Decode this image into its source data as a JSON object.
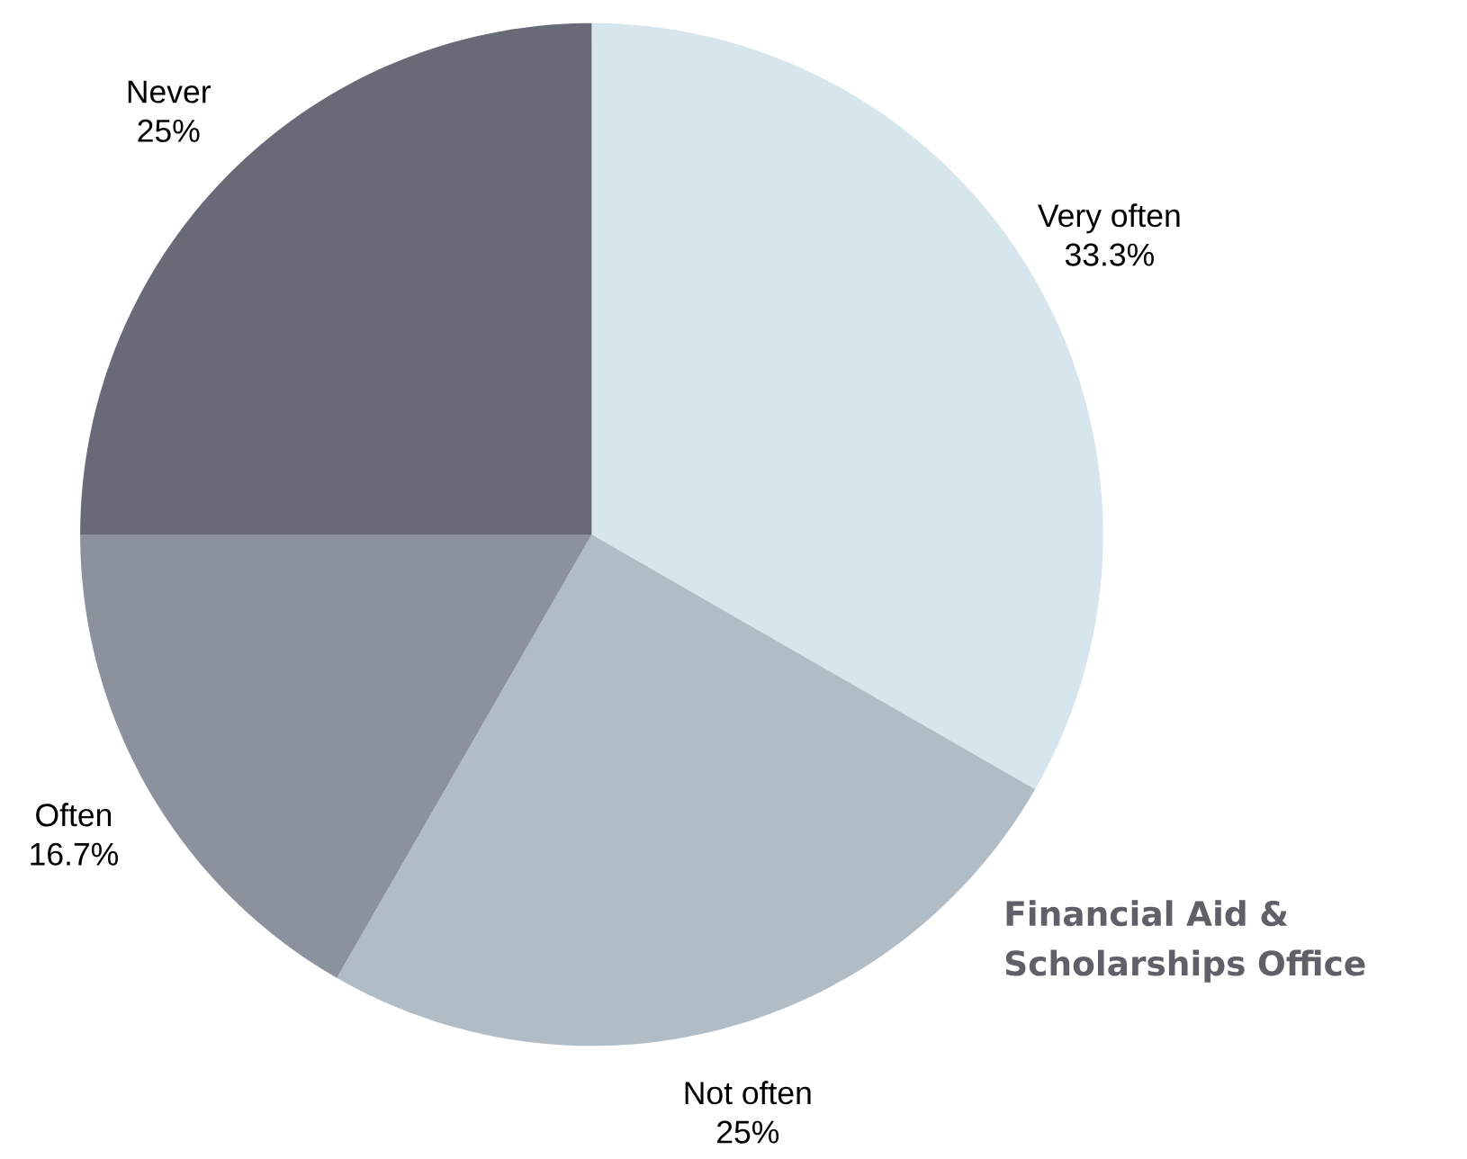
{
  "chart_data": {
    "type": "pie",
    "categories": [
      "Very often",
      "Not often",
      "Often",
      "Never"
    ],
    "values": [
      33.3,
      25,
      16.7,
      25
    ],
    "colors": [
      "#d6e6ec",
      "#b0bcc6",
      "#8b929e",
      "#686a78"
    ],
    "value_labels": [
      "33.3%",
      "25%",
      "16.7%",
      "25%"
    ],
    "annotations": [
      "Financial Aid & Scholarships Office"
    ]
  }
}
